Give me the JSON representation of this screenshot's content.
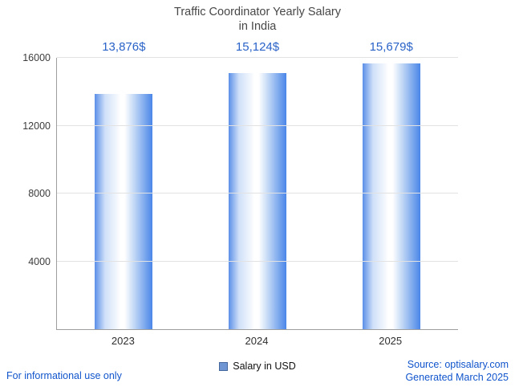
{
  "chart_data": {
    "type": "bar",
    "title_line1": "Traffic Coordinator Yearly Salary",
    "title_line2": "in India",
    "categories": [
      "2023",
      "2024",
      "2025"
    ],
    "values": [
      13876,
      15124,
      15679
    ],
    "value_labels": [
      "13,876$",
      "15,124$",
      "15,679$"
    ],
    "legend": "Salary in USD",
    "xlabel": "",
    "ylabel": "",
    "ylim": [
      0,
      16000
    ],
    "yticks": [
      4000,
      8000,
      12000,
      16000
    ],
    "grid": "horizontal",
    "legend_position": "bottom",
    "colors": {
      "bar_edge": "#4a86e8",
      "bar_center": "#ffffff",
      "value_label": "#2a63c8",
      "link_text": "#1155cc",
      "title_text": "#474747",
      "axis_line": "#9e9e9e",
      "gridline": "#e2e2e2"
    }
  },
  "footer": {
    "disclaimer": "For informational use only",
    "source": "Source: optisalary.com",
    "generated": "Generated March 2025"
  }
}
